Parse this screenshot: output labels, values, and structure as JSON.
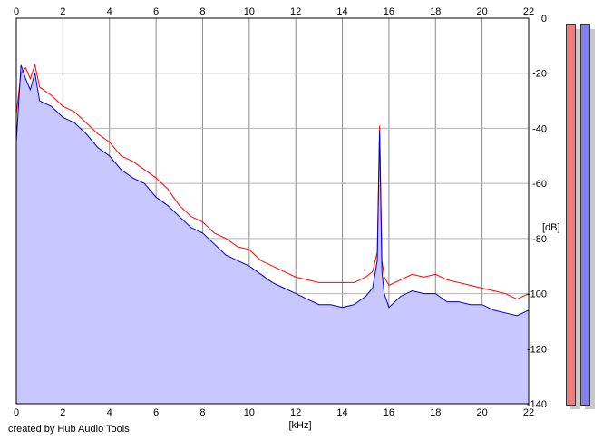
{
  "chart_data": {
    "type": "area",
    "title": "",
    "xlabel": "[kHz]",
    "ylabel": "[dB]",
    "xlim": [
      0,
      22
    ],
    "ylim": [
      -140,
      0
    ],
    "x_ticks": [
      0,
      2,
      4,
      6,
      8,
      10,
      12,
      14,
      16,
      18,
      20,
      22
    ],
    "y_ticks": [
      0,
      -20,
      -40,
      -60,
      -80,
      -100,
      -120,
      -140
    ],
    "grid": true,
    "legend": "none",
    "fill_color": "#c8c8ff",
    "series": [
      {
        "color": "#ff0000",
        "x": [
          0,
          0.2,
          0.4,
          0.6,
          0.8,
          1,
          1.5,
          2,
          2.5,
          3,
          3.5,
          4,
          4.5,
          5,
          5.5,
          6,
          6.5,
          7,
          7.5,
          8,
          8.5,
          9,
          9.5,
          10,
          10.5,
          11,
          11.5,
          12,
          12.5,
          13,
          13.5,
          14,
          14.5,
          15,
          15.3,
          15.5,
          15.6,
          15.7,
          15.8,
          16,
          16.5,
          17,
          17.5,
          18,
          18.5,
          19,
          19.5,
          20,
          20.5,
          21,
          21.5,
          22
        ],
        "y": [
          -35,
          -20,
          -18,
          -22,
          -17,
          -25,
          -28,
          -32,
          -34,
          -38,
          -42,
          -45,
          -50,
          -52,
          -55,
          -58,
          -62,
          -68,
          -72,
          -74,
          -78,
          -80,
          -83,
          -84,
          -88,
          -90,
          -92,
          -94,
          -95,
          -96,
          -96,
          -96,
          -96,
          -94,
          -92,
          -85,
          -39,
          -88,
          -94,
          -97,
          -95,
          -93,
          -94,
          -93,
          -95,
          -96,
          -97,
          -98,
          -99,
          -100,
          -102,
          -100
        ]
      },
      {
        "color": "#0000cc",
        "x": [
          0,
          0.2,
          0.4,
          0.6,
          0.8,
          1,
          1.5,
          2,
          2.5,
          3,
          3.5,
          4,
          4.5,
          5,
          5.5,
          6,
          6.5,
          7,
          7.5,
          8,
          8.5,
          9,
          9.5,
          10,
          10.5,
          11,
          11.5,
          12,
          12.5,
          13,
          13.5,
          14,
          14.5,
          15,
          15.3,
          15.5,
          15.6,
          15.7,
          15.8,
          16,
          16.5,
          17,
          17.5,
          18,
          18.5,
          19,
          19.5,
          20,
          20.5,
          21,
          21.5,
          22
        ],
        "y": [
          -45,
          -17,
          -22,
          -26,
          -20,
          -30,
          -32,
          -36,
          -38,
          -42,
          -47,
          -50,
          -55,
          -58,
          -60,
          -65,
          -68,
          -72,
          -76,
          -78,
          -82,
          -86,
          -88,
          -90,
          -93,
          -96,
          -98,
          -100,
          -102,
          -104,
          -104,
          -105,
          -104,
          -101,
          -98,
          -88,
          -41,
          -92,
          -100,
          -105,
          -101,
          -99,
          -100,
          -100,
          -103,
          -103,
          -104,
          -104,
          -106,
          -107,
          -108,
          -106
        ]
      }
    ]
  },
  "credit": "created by Hub Audio Tools",
  "meters": {
    "left_color": "#ef7f7f",
    "right_color": "#8080f0"
  }
}
